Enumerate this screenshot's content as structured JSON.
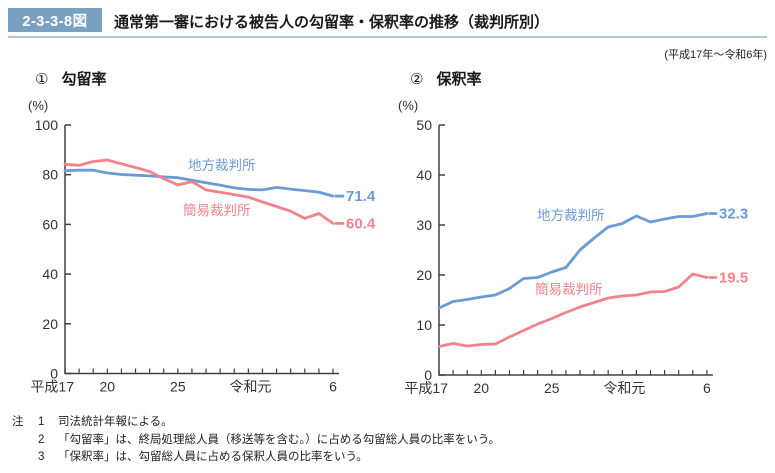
{
  "header": {
    "badge": "2-3-3-8図",
    "title": "通常第一審における被告人の勾留率・保釈率の推移（裁判所別）",
    "period": "(平成17年～令和6年)"
  },
  "colors": {
    "district_court": "#6a9bd4",
    "summary_court": "#f2828c",
    "axis": "#404040",
    "badge_bg": "#7ba1c0",
    "header_rule": "#adc8dd"
  },
  "chart_data": [
    {
      "type": "line",
      "index_label": "①",
      "title": "勾留率",
      "unit": "(%)",
      "ylim": [
        0,
        100
      ],
      "yticks": [
        0,
        20,
        40,
        60,
        80,
        100
      ],
      "n_points": 20,
      "x_labels_shown": [
        {
          "index": 0,
          "label": "平成17"
        },
        {
          "index": 3,
          "label": "20"
        },
        {
          "index": 8,
          "label": "25"
        },
        {
          "index": 14,
          "label": "令和元"
        },
        {
          "index": 19,
          "label": "6"
        }
      ],
      "grid": false,
      "legend_position": "inline",
      "series": [
        {
          "name": "地方裁判所",
          "color": "#6a9bd4",
          "end_label": "71.4",
          "values": [
            81.6,
            81.8,
            81.8,
            80.7,
            80.1,
            79.8,
            79.5,
            79.1,
            78.8,
            77.8,
            76.8,
            75.8,
            74.7,
            74.1,
            73.9,
            74.9,
            74.2,
            73.6,
            73.0,
            71.4
          ]
        },
        {
          "name": "簡易裁判所",
          "color": "#f2828c",
          "end_label": "60.4",
          "values": [
            84.2,
            83.8,
            85.3,
            85.9,
            84.4,
            82.9,
            81.3,
            78.4,
            75.9,
            77.2,
            73.9,
            72.9,
            72.0,
            71.0,
            69.0,
            67.2,
            65.3,
            62.4,
            64.4,
            60.4
          ]
        }
      ]
    },
    {
      "type": "line",
      "index_label": "②",
      "title": "保釈率",
      "unit": "(%)",
      "ylim": [
        0,
        50
      ],
      "yticks": [
        0,
        10,
        20,
        30,
        40,
        50
      ],
      "n_points": 20,
      "x_labels_shown": [
        {
          "index": 0,
          "label": "平成17"
        },
        {
          "index": 3,
          "label": "20"
        },
        {
          "index": 8,
          "label": "25"
        },
        {
          "index": 14,
          "label": "令和元"
        },
        {
          "index": 19,
          "label": "6"
        }
      ],
      "grid": false,
      "legend_position": "inline",
      "series": [
        {
          "name": "地方裁判所",
          "color": "#6a9bd4",
          "end_label": "32.3",
          "values": [
            13.4,
            14.7,
            15.1,
            15.6,
            16.0,
            17.3,
            19.3,
            19.5,
            20.6,
            21.5,
            25.0,
            27.4,
            29.6,
            30.3,
            31.8,
            30.6,
            31.2,
            31.7,
            31.7,
            32.3
          ]
        },
        {
          "name": "簡易裁判所",
          "color": "#f2828c",
          "end_label": "19.5",
          "values": [
            5.7,
            6.3,
            5.8,
            6.1,
            6.2,
            7.6,
            8.9,
            10.2,
            11.3,
            12.5,
            13.6,
            14.5,
            15.4,
            15.8,
            16.0,
            16.6,
            16.7,
            17.6,
            20.2,
            19.5
          ]
        }
      ]
    }
  ],
  "notes": {
    "label": "注",
    "items": [
      {
        "num": "1",
        "text": "司法統計年報による。"
      },
      {
        "num": "2",
        "text": "「勾留率」は、終局処理総人員（移送等を含む。）に占める勾留総人員の比率をいう。"
      },
      {
        "num": "3",
        "text": "「保釈率」は、勾留総人員に占める保釈人員の比率をいう。"
      }
    ]
  }
}
